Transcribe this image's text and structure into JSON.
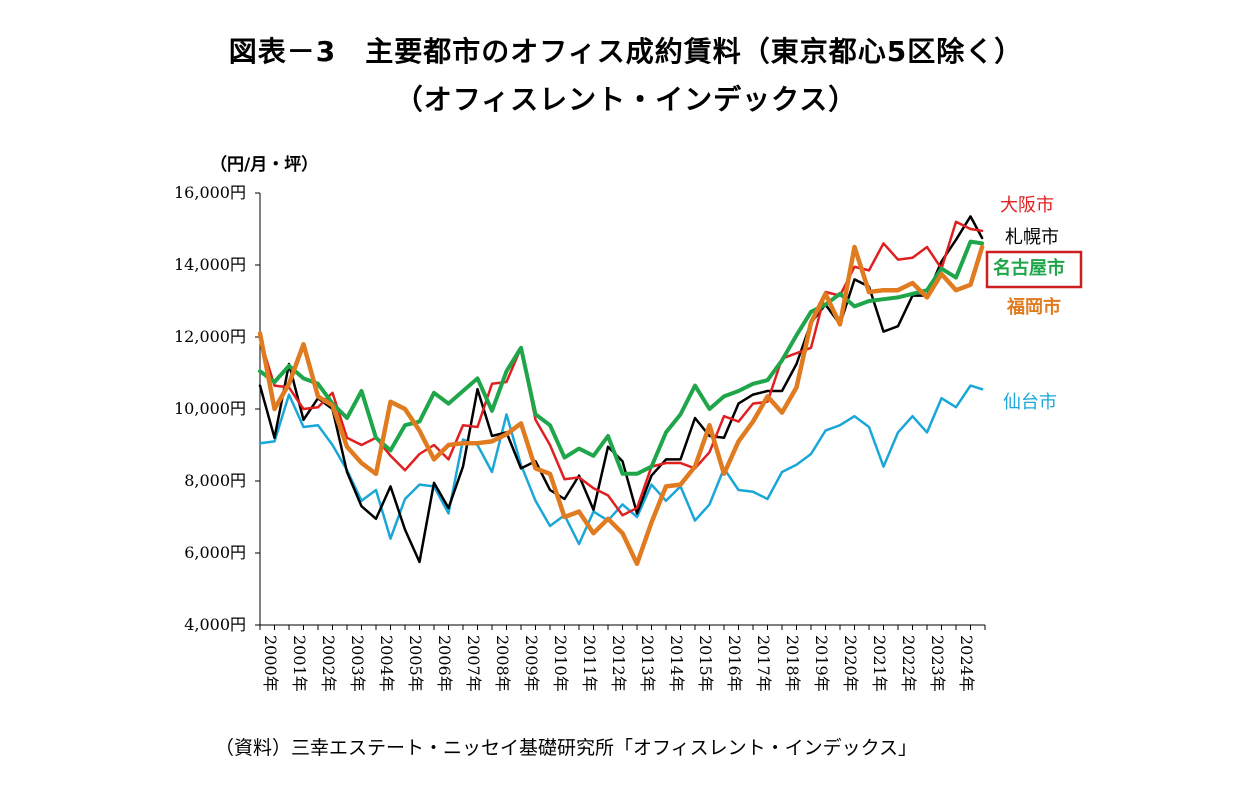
{
  "title_line1": "図表－3　主要都市のオフィス成約賃料（東京都心5区除く）",
  "title_line2": "（オフィスレント・インデックス）",
  "unit_label": "（円/月・坪）",
  "source": "（資料）三幸エステート・ニッセイ基礎研究所「オフィスレント・インデックス」",
  "chart_data": {
    "type": "line",
    "title": "主要都市のオフィス成約賃料（東京都心5区除く）",
    "ylabel": "（円/月・坪）",
    "xlabel": "",
    "ylim": [
      4000,
      16000
    ],
    "y_ticks": [
      "4,000円",
      "6,000円",
      "8,000円",
      "10,000円",
      "12,000円",
      "14,000円",
      "16,000円"
    ],
    "y_tick_values": [
      4000,
      6000,
      8000,
      10000,
      12000,
      14000,
      16000
    ],
    "x_ticks": [
      "2000年",
      "2001年",
      "2002年",
      "2003年",
      "2004年",
      "2005年",
      "2006年",
      "2007年",
      "2008年",
      "2009年",
      "2010年",
      "2011年",
      "2012年",
      "2013年",
      "2014年",
      "2015年",
      "2016年",
      "2017年",
      "2018年",
      "2019年",
      "2020年",
      "2021年",
      "2022年",
      "2023年",
      "2024年"
    ],
    "x_tick_values": [
      2000,
      2001,
      2002,
      2003,
      2004,
      2005,
      2006,
      2007,
      2008,
      2009,
      2010,
      2011,
      2012,
      2013,
      2014,
      2015,
      2016,
      2017,
      2018,
      2019,
      2020,
      2021,
      2022,
      2023,
      2024
    ],
    "xlim": [
      2000,
      2025
    ],
    "series": [
      {
        "name": "仙台市",
        "color": "#1aa7d8",
        "width": 2.5,
        "bold_label": false,
        "x": [
          2000,
          2000.5,
          2001,
          2001.5,
          2002,
          2002.5,
          2003,
          2003.5,
          2004,
          2004.5,
          2005,
          2005.5,
          2006,
          2006.5,
          2007,
          2007.5,
          2008,
          2008.5,
          2009,
          2009.5,
          2010,
          2010.5,
          2011,
          2011.5,
          2012,
          2012.5,
          2013,
          2013.5,
          2014,
          2014.5,
          2015,
          2015.5,
          2016,
          2016.5,
          2017,
          2017.5,
          2018,
          2018.5,
          2019,
          2019.5,
          2020,
          2020.5,
          2021,
          2021.5,
          2022,
          2022.5,
          2023,
          2023.5,
          2024,
          2024.5,
          2024.9
        ],
        "y": [
          9050,
          9100,
          10400,
          9500,
          9550,
          9000,
          8300,
          7450,
          7750,
          6400,
          7500,
          7900,
          7850,
          7100,
          9150,
          9000,
          8250,
          9850,
          8450,
          7450,
          6750,
          7050,
          6250,
          7150,
          6900,
          7350,
          7000,
          7900,
          7450,
          7850,
          6900,
          7350,
          8350,
          7750,
          7700,
          7500,
          8250,
          8450,
          8750,
          9400,
          9550,
          9800,
          9500,
          8400,
          9350,
          9800,
          9350,
          10300,
          10050,
          10650,
          10550
        ]
      },
      {
        "name": "札幌市",
        "color": "#000000",
        "width": 2.5,
        "bold_label": false,
        "x": [
          2000,
          2000.5,
          2001,
          2001.5,
          2002,
          2002.5,
          2003,
          2003.5,
          2004,
          2004.5,
          2005,
          2005.5,
          2006,
          2006.5,
          2007,
          2007.5,
          2008,
          2008.5,
          2009,
          2009.5,
          2010,
          2010.5,
          2011,
          2011.5,
          2012,
          2012.5,
          2013,
          2013.5,
          2014,
          2014.5,
          2015,
          2015.5,
          2016,
          2016.5,
          2017,
          2017.5,
          2018,
          2018.5,
          2019,
          2019.5,
          2020,
          2020.5,
          2021,
          2021.5,
          2022,
          2022.5,
          2023,
          2023.5,
          2024,
          2024.5,
          2024.9
        ],
        "y": [
          10650,
          9200,
          11250,
          9700,
          10300,
          10000,
          8250,
          7300,
          6950,
          7850,
          6650,
          5750,
          7950,
          7250,
          8400,
          10550,
          9250,
          9350,
          8350,
          8550,
          7750,
          7500,
          8150,
          7200,
          8950,
          8550,
          7100,
          8150,
          8600,
          8600,
          9750,
          9250,
          9200,
          10150,
          10400,
          10500,
          10500,
          11250,
          12400,
          12900,
          12350,
          13600,
          13400,
          12150,
          12300,
          13150,
          13150,
          14100,
          14700,
          15350,
          14750
        ]
      },
      {
        "name": "大阪市",
        "color": "#e02020",
        "width": 2.5,
        "bold_label": false,
        "x": [
          2000,
          2000.5,
          2001,
          2001.5,
          2002,
          2002.5,
          2003,
          2003.5,
          2004,
          2004.5,
          2005,
          2005.5,
          2006,
          2006.5,
          2007,
          2007.5,
          2008,
          2008.5,
          2009,
          2009.5,
          2010,
          2010.5,
          2011,
          2011.5,
          2012,
          2012.5,
          2013,
          2013.5,
          2014,
          2014.5,
          2015,
          2015.5,
          2016,
          2016.5,
          2017,
          2017.5,
          2018,
          2018.5,
          2019,
          2019.5,
          2020,
          2020.5,
          2021,
          2021.5,
          2022,
          2022.5,
          2023,
          2023.5,
          2024,
          2024.5,
          2024.9
        ],
        "y": [
          11950,
          10650,
          10600,
          10000,
          10050,
          10450,
          9200,
          9000,
          9200,
          8700,
          8300,
          8750,
          9000,
          8600,
          9550,
          9500,
          10700,
          10750,
          11700,
          9700,
          9000,
          8050,
          8100,
          7800,
          7600,
          7050,
          7250,
          8400,
          8500,
          8500,
          8350,
          8800,
          9800,
          9650,
          10150,
          10200,
          11400,
          11550,
          11700,
          13250,
          13150,
          13950,
          13850,
          14600,
          14150,
          14200,
          14500,
          13900,
          15200,
          15000,
          14950
        ]
      },
      {
        "name": "名古屋市",
        "color": "#1fa64a",
        "width": 4,
        "bold_label": true,
        "boxed": true,
        "x": [
          2000,
          2000.5,
          2001,
          2001.5,
          2002,
          2002.5,
          2003,
          2003.5,
          2004,
          2004.5,
          2005,
          2005.5,
          2006,
          2006.5,
          2007,
          2007.5,
          2008,
          2008.5,
          2009,
          2009.5,
          2010,
          2010.5,
          2011,
          2011.5,
          2012,
          2012.5,
          2013,
          2013.5,
          2014,
          2014.5,
          2015,
          2015.5,
          2016,
          2016.5,
          2017,
          2017.5,
          2018,
          2018.5,
          2019,
          2019.5,
          2020,
          2020.5,
          2021,
          2021.5,
          2022,
          2022.5,
          2023,
          2023.5,
          2024,
          2024.5,
          2024.9
        ],
        "y": [
          11050,
          10750,
          11200,
          10850,
          10700,
          10150,
          9750,
          10500,
          9200,
          8850,
          9550,
          9650,
          10450,
          10150,
          10500,
          10850,
          9950,
          11050,
          11700,
          9850,
          9550,
          8650,
          8900,
          8700,
          9250,
          8200,
          8200,
          8400,
          9350,
          9850,
          10650,
          10000,
          10350,
          10500,
          10700,
          10800,
          11350,
          12050,
          12700,
          12900,
          13200,
          12850,
          13000,
          13050,
          13100,
          13200,
          13300,
          13900,
          13650,
          14650,
          14600
        ]
      },
      {
        "name": "福岡市",
        "color": "#e07b20",
        "width": 4.5,
        "bold_label": true,
        "x": [
          2000,
          2000.5,
          2001,
          2001.5,
          2002,
          2002.5,
          2003,
          2003.5,
          2004,
          2004.5,
          2005,
          2005.5,
          2006,
          2006.5,
          2007,
          2007.5,
          2008,
          2008.5,
          2009,
          2009.5,
          2010,
          2010.5,
          2011,
          2011.5,
          2012,
          2012.5,
          2013,
          2013.5,
          2014,
          2014.5,
          2015,
          2015.5,
          2016,
          2016.5,
          2017,
          2017.5,
          2018,
          2018.5,
          2019,
          2019.5,
          2020,
          2020.5,
          2021,
          2021.5,
          2022,
          2022.5,
          2023,
          2023.5,
          2024,
          2024.5,
          2024.9
        ],
        "y": [
          12100,
          10000,
          10700,
          11800,
          10350,
          10100,
          8950,
          8500,
          8200,
          10200,
          10000,
          9400,
          8600,
          9000,
          9050,
          9050,
          9100,
          9300,
          9600,
          8350,
          8200,
          7000,
          7150,
          6550,
          6950,
          6550,
          5700,
          6850,
          7850,
          7900,
          8400,
          9550,
          8200,
          9100,
          9650,
          10350,
          9900,
          10600,
          12400,
          13200,
          12350,
          14500,
          13250,
          13300,
          13300,
          13500,
          13100,
          13750,
          13300,
          13450,
          14500
        ]
      }
    ],
    "legend": "inline-right"
  }
}
